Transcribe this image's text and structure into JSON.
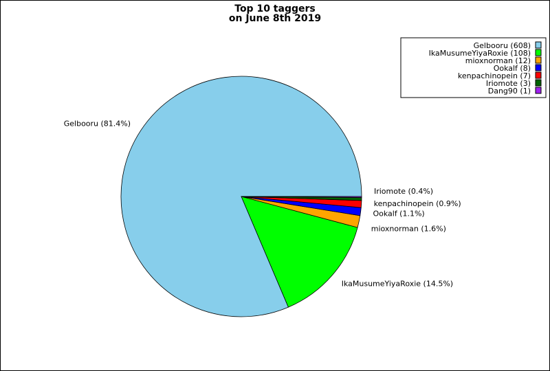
{
  "chart_data": {
    "type": "pie",
    "title_lines": [
      "Top 10 taggers",
      "on June 8th 2019"
    ],
    "slices": [
      {
        "name": "Gelbooru",
        "value": 608,
        "percent_label": "Gelbooru (81.4%)",
        "legend_label": "Gelbooru (608)",
        "color": "#87ceeb"
      },
      {
        "name": "IkaMusumeYiyaRoxie",
        "value": 108,
        "percent_label": "IkaMusumeYiyaRoxie (14.5%)",
        "legend_label": "IkaMusumeYiyaRoxie (108)",
        "color": "#00ff00"
      },
      {
        "name": "mioxnorman",
        "value": 12,
        "percent_label": "mioxnorman (1.6%)",
        "legend_label": "mioxnorman (12)",
        "color": "#ffa500"
      },
      {
        "name": "Ookalf",
        "value": 8,
        "percent_label": "Ookalf (1.1%)",
        "legend_label": "Ookalf (8)",
        "color": "#0000ff"
      },
      {
        "name": "kenpachinopein",
        "value": 7,
        "percent_label": "kenpachinopein (0.9%)",
        "legend_label": "kenpachinopein (7)",
        "color": "#ff0000"
      },
      {
        "name": "Iriomote",
        "value": 3,
        "percent_label": "Iriomote (0.4%)",
        "legend_label": "Iriomote (3)",
        "color": "#006400"
      },
      {
        "name": "Dang90",
        "value": 1,
        "percent_label": "",
        "legend_label": "Dang90 (1)",
        "color": "#a020f0"
      }
    ],
    "legend_placement": "top-right"
  }
}
